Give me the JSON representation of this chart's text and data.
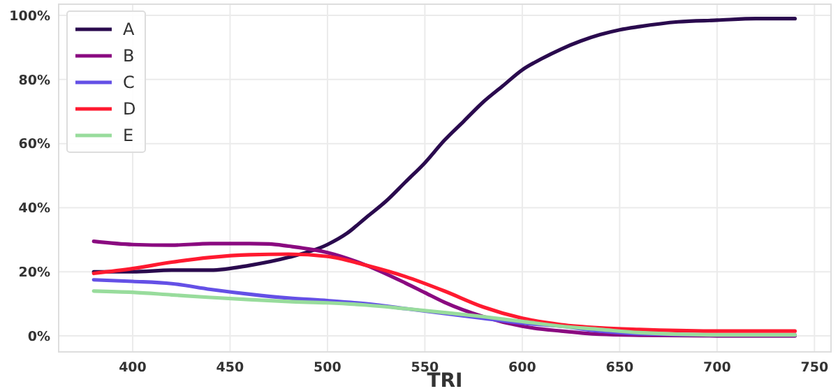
{
  "chart_data": {
    "type": "line",
    "xlabel": "TRI",
    "series": [
      {
        "name": "A",
        "color": "#2a0a4e",
        "x": [
          380,
          400,
          420,
          440,
          460,
          480,
          500,
          510,
          520,
          530,
          540,
          550,
          560,
          570,
          580,
          590,
          600,
          610,
          620,
          630,
          640,
          650,
          660,
          680,
          700,
          720,
          740
        ],
        "values": [
          20,
          20,
          20.5,
          20.5,
          22,
          24.5,
          28.5,
          32,
          37,
          42,
          48,
          54,
          61,
          67,
          73,
          78,
          83,
          86.5,
          89.5,
          92,
          94,
          95.5,
          96.5,
          98,
          98.5,
          99,
          99
        ]
      },
      {
        "name": "B",
        "color": "#8a0a80",
        "x": [
          380,
          400,
          420,
          440,
          460,
          470,
          480,
          500,
          520,
          540,
          550,
          560,
          580,
          600,
          620,
          640,
          660,
          700,
          740
        ],
        "values": [
          29.5,
          28.5,
          28.3,
          28.8,
          28.8,
          28.7,
          28,
          26,
          22,
          16.5,
          13.5,
          10.5,
          6,
          3,
          1.5,
          0.5,
          0.2,
          0,
          0
        ]
      },
      {
        "name": "C",
        "color": "#6450e6",
        "x": [
          380,
          400,
          420,
          440,
          460,
          480,
          500,
          520,
          540,
          560,
          580,
          600,
          620,
          640,
          660,
          700,
          740
        ],
        "values": [
          17.5,
          17,
          16.3,
          14.5,
          13,
          11.8,
          11,
          10,
          8.5,
          7,
          5.5,
          4,
          3,
          1.5,
          0.7,
          0.3,
          0.3
        ]
      },
      {
        "name": "D",
        "color": "#ff1a30",
        "x": [
          380,
          400,
          420,
          440,
          460,
          480,
          500,
          520,
          540,
          560,
          580,
          600,
          620,
          640,
          660,
          700,
          740
        ],
        "values": [
          19.5,
          21,
          23,
          24.5,
          25.3,
          25.5,
          24.8,
          22,
          18.5,
          14,
          9,
          5.5,
          3.5,
          2.5,
          2,
          1.5,
          1.5
        ]
      },
      {
        "name": "E",
        "color": "#98dc9c",
        "x": [
          380,
          400,
          420,
          440,
          460,
          480,
          500,
          520,
          540,
          560,
          580,
          600,
          620,
          640,
          660,
          700,
          740
        ],
        "values": [
          14,
          13.6,
          12.8,
          12,
          11.3,
          10.7,
          10.3,
          9.6,
          8.5,
          7.3,
          6,
          4.5,
          3,
          2,
          1,
          0.3,
          0.3
        ]
      }
    ],
    "xlim": [
      362,
      758.5
    ],
    "xticks": [
      400,
      450,
      500,
      550,
      600,
      650,
      700,
      750
    ],
    "ylim": [
      -5,
      103.5
    ],
    "yticks": [
      {
        "value": 0,
        "label": "0%"
      },
      {
        "value": 20,
        "label": "20%"
      },
      {
        "value": 40,
        "label": "40%"
      },
      {
        "value": 60,
        "label": "60%"
      },
      {
        "value": 80,
        "label": "80%"
      },
      {
        "value": 100,
        "label": "100%"
      }
    ],
    "grid": true,
    "legend": "top left",
    "line_style": "solid",
    "marker": "none"
  }
}
